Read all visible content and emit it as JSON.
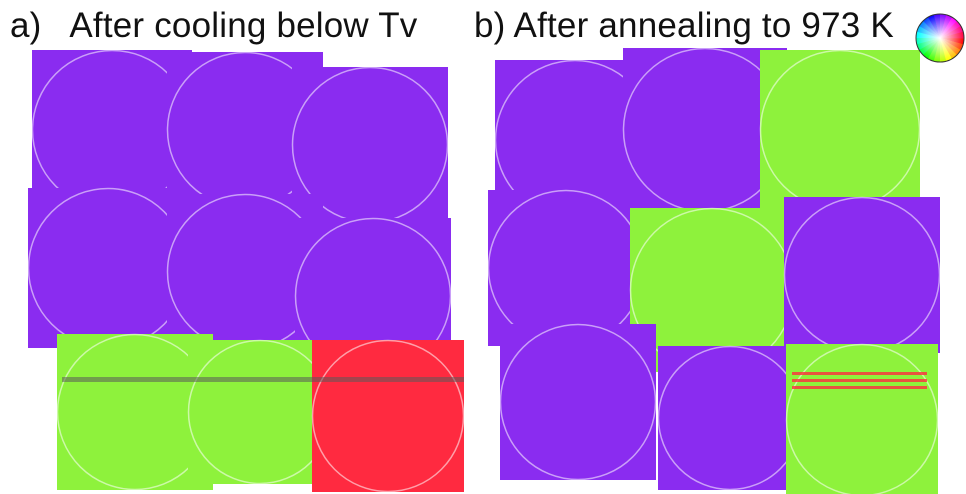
{
  "panels": [
    {
      "label": "a)",
      "title": "After cooling below Tv"
    },
    {
      "label": "b)",
      "title": "After annealing to 973 K"
    }
  ],
  "colors": {
    "violet": "#8a2cf0",
    "magenta": "#d238e6",
    "green": "#8ef23c",
    "yellow_green": "#c6f43a",
    "cyan": "#34d8ee",
    "red": "#ff2a40",
    "yellow": "#f6e030"
  },
  "legend": {
    "icon": "color-wheel-icon"
  }
}
